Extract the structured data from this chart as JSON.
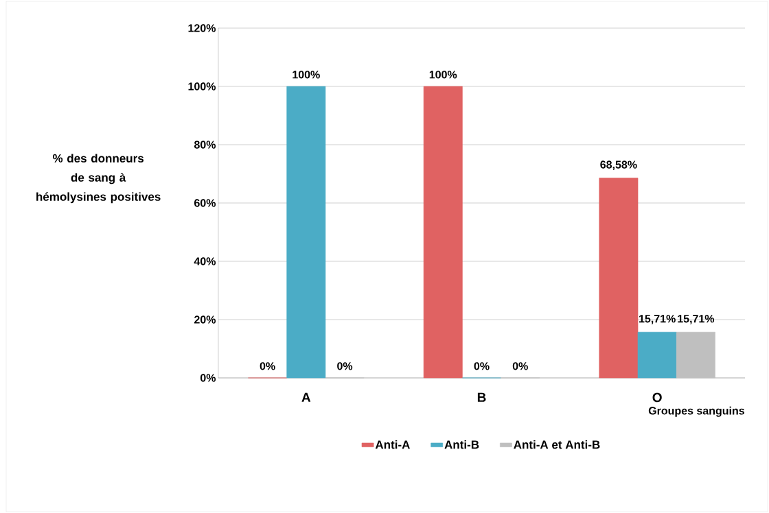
{
  "chart_data": {
    "type": "bar",
    "ylabel": "% des donneurs de sang à hémolysines positives",
    "xlabel": "Groupes  sanguins",
    "categories": [
      "A",
      "B",
      "O"
    ],
    "series": [
      {
        "name": "Anti-A",
        "color": "#e06262",
        "values": [
          0,
          100,
          68.58
        ],
        "value_labels": [
          "0%",
          "100%",
          "68,58%"
        ]
      },
      {
        "name": "Anti-B",
        "color": "#4bacc6",
        "values": [
          100,
          0,
          15.71
        ],
        "value_labels": [
          "100%",
          "0%",
          "15,71%"
        ]
      },
      {
        "name": "Anti-A et Anti-B",
        "color": "#bfbfbf",
        "values": [
          0,
          0,
          15.71
        ],
        "value_labels": [
          "0%",
          "0%",
          "15,71%"
        ]
      }
    ],
    "ylim": [
      0,
      120
    ],
    "yticks": [
      {
        "value": 0,
        "label": "0%"
      },
      {
        "value": 20,
        "label": "20%"
      },
      {
        "value": 40,
        "label": "40%"
      },
      {
        "value": 60,
        "label": "60%"
      },
      {
        "value": 80,
        "label": "80%"
      },
      {
        "value": 100,
        "label": "100%"
      },
      {
        "value": 120,
        "label": "120%"
      }
    ],
    "grid": "y",
    "legend": "bottom"
  }
}
